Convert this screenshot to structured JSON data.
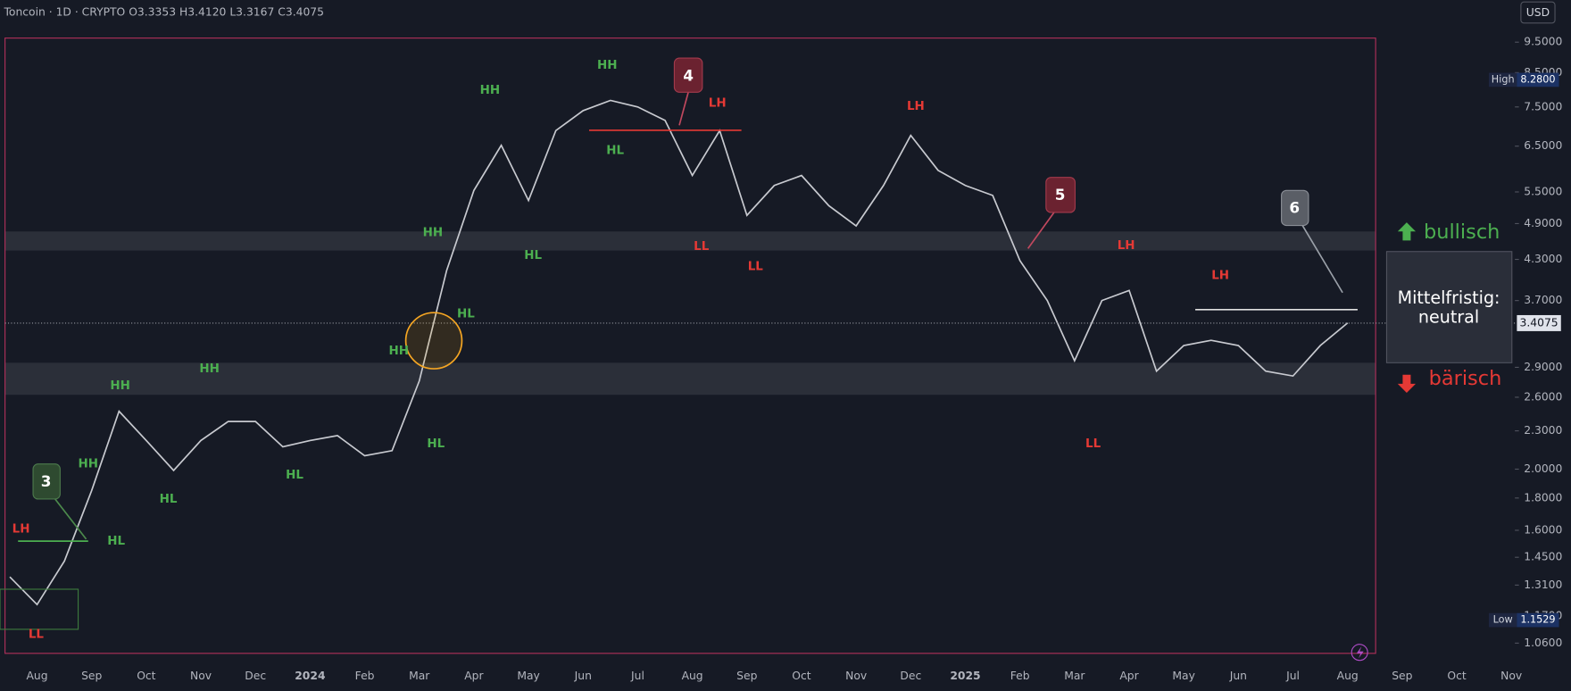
{
  "header": {
    "symbol": "Toncoin · 1D · CRYPTO",
    "open": "O3.3353",
    "high": "H3.4120",
    "low": "L3.3167",
    "close": "C3.4075",
    "currency": "USD"
  },
  "chart_data": {
    "type": "line",
    "log_scale": true,
    "categories": [
      null,
      "Aug",
      null,
      "Sep",
      null,
      "Oct",
      null,
      "Nov",
      null,
      "Dec",
      null,
      "2024",
      null,
      "Feb",
      null,
      "Mar",
      null,
      "Apr",
      null,
      "May",
      null,
      "Jun",
      null,
      "Jul",
      null,
      "Aug",
      null,
      "Sep",
      null,
      "Oct",
      null,
      "Nov",
      null,
      "Dec",
      null,
      "2025",
      null,
      "Feb",
      null,
      "Mar",
      null,
      "Apr",
      null,
      "May",
      null,
      "Jun",
      null,
      "Jul",
      null,
      "Aug",
      null,
      "Sep",
      null,
      "Oct",
      null,
      "Nov"
    ],
    "series": [
      {
        "name": "Toncoin",
        "color": "#c8cad0",
        "values": [
          1.35,
          1.22,
          1.43,
          1.85,
          2.47,
          2.22,
          1.99,
          2.22,
          2.38,
          2.38,
          2.17,
          2.22,
          2.26,
          2.1,
          2.14,
          2.76,
          4.13,
          5.53,
          6.52,
          5.33,
          6.88,
          7.4,
          7.68,
          7.5,
          7.14,
          5.84,
          6.88,
          5.05,
          5.63,
          5.84,
          5.23,
          4.86,
          5.63,
          6.76,
          5.95,
          5.63,
          5.43,
          4.28,
          3.7,
          2.97,
          3.7,
          3.84,
          2.86,
          3.14,
          3.2,
          3.14,
          2.86,
          2.81,
          3.14,
          3.41,
          null,
          null,
          null,
          null,
          null,
          null
        ]
      }
    ],
    "ylim": [
      1.01,
      11.08
    ],
    "yticks": [
      {
        "value": 9.5,
        "label": "9.5000"
      },
      {
        "value": 8.5,
        "label": "8.5000"
      },
      {
        "value": 7.5,
        "label": "7.5000"
      },
      {
        "value": 6.5,
        "label": "6.5000"
      },
      {
        "value": 5.5,
        "label": "5.5000"
      },
      {
        "value": 4.9,
        "label": "4.9000"
      },
      {
        "value": 4.3,
        "label": "4.3000"
      },
      {
        "value": 3.7,
        "label": "3.7000"
      },
      {
        "value": 2.9,
        "label": "2.9000"
      },
      {
        "value": 2.6,
        "label": "2.6000"
      },
      {
        "value": 2.3,
        "label": "2.3000"
      },
      {
        "value": 2.0,
        "label": "2.0000"
      },
      {
        "value": 1.8,
        "label": "1.8000"
      },
      {
        "value": 1.6,
        "label": "1.6000"
      },
      {
        "value": 1.45,
        "label": "1.4500"
      },
      {
        "value": 1.31,
        "label": "1.3100"
      },
      {
        "value": 1.17,
        "label": "1.1700"
      },
      {
        "value": 1.06,
        "label": "1.0600"
      }
    ],
    "markers": [
      {
        "name": "High",
        "value": 8.28,
        "label": "8.2800"
      },
      {
        "name": "Low",
        "value": 1.1529
      }
    ],
    "last": 3.4075
  },
  "swing_labels": {
    "green": [
      "HH",
      "HH",
      "HL",
      "HL",
      "HH",
      "HL",
      "HH",
      "HL",
      "HH",
      "HH",
      "HL",
      "HL",
      "HH",
      "HL"
    ],
    "red": [
      "LH",
      "LH",
      "LL",
      "LL",
      "LH",
      "LH",
      "LL",
      "LH",
      "LL"
    ]
  },
  "callouts": [
    "4",
    "5",
    "3",
    "6"
  ],
  "panel": {
    "bull": "bullisch",
    "title": "Mittelfristig:",
    "state": "neutral",
    "bear": "bärisch"
  }
}
